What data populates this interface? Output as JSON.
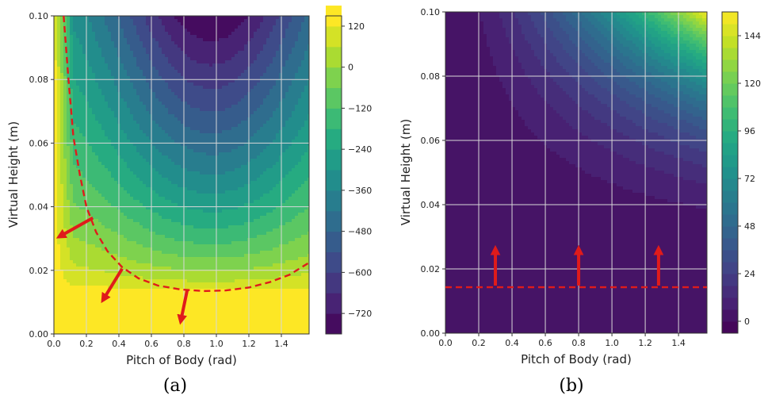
{
  "chart_data": [
    {
      "type": "heatmap",
      "variant": "filled-contour",
      "panel_label": "(a)",
      "xlabel": "Pitch of Body (rad)",
      "ylabel": "Virtual Height (m)",
      "xlim": [
        0.0,
        1.5708
      ],
      "ylim": [
        0.0,
        0.1
      ],
      "x_ticks": [
        "0.0",
        "0.2",
        "0.4",
        "0.6",
        "0.8",
        "1.0",
        "1.2",
        "1.4"
      ],
      "y_ticks": [
        "0.00",
        "0.02",
        "0.04",
        "0.06",
        "0.08",
        "0.10"
      ],
      "grid": true,
      "colormap": "viridis",
      "colorbar_ticks": [
        "120",
        "0",
        "−120",
        "−240",
        "−360",
        "−480",
        "−600",
        "−720"
      ],
      "colorbar_range": [
        -780,
        150
      ],
      "level_step": 60,
      "field_model": {
        "base": 150,
        "low": -780,
        "h0": 0.0135,
        "peak_pitch": 0.97,
        "pitch_spread": 0.7
      },
      "boundary_curve": {
        "style": "dashed",
        "color": "#e01b1b",
        "x": [
          0.06,
          0.09,
          0.12,
          0.16,
          0.2,
          0.26,
          0.33,
          0.42,
          0.52,
          0.64,
          0.78,
          0.92,
          1.06,
          1.2,
          1.33,
          1.45,
          1.57
        ],
        "y": [
          0.1,
          0.08,
          0.062,
          0.05,
          0.04,
          0.032,
          0.026,
          0.021,
          0.0175,
          0.0152,
          0.014,
          0.0135,
          0.0137,
          0.0146,
          0.0163,
          0.0186,
          0.0224
        ]
      },
      "arrows": [
        {
          "from": [
            0.24,
            0.0365
          ],
          "to": [
            0.03,
            0.0305
          ],
          "color": "#e01b1b"
        },
        {
          "from": [
            0.42,
            0.0205
          ],
          "to": [
            0.3,
            0.0105
          ],
          "color": "#e01b1b"
        },
        {
          "from": [
            0.82,
            0.0137
          ],
          "to": [
            0.78,
            0.0038
          ],
          "color": "#e01b1b"
        }
      ]
    },
    {
      "type": "heatmap",
      "variant": "filled-contour",
      "panel_label": "(b)",
      "xlabel": "Pitch of Body (rad)",
      "ylabel": "Virtual Height (m)",
      "xlim": [
        0.0,
        1.5708
      ],
      "ylim": [
        0.0,
        0.1
      ],
      "x_ticks": [
        "0.0",
        "0.2",
        "0.4",
        "0.6",
        "0.8",
        "1.0",
        "1.2",
        "1.4"
      ],
      "y_ticks": [
        "0.00",
        "0.02",
        "0.04",
        "0.06",
        "0.08",
        "0.10"
      ],
      "grid": true,
      "colormap": "viridis",
      "colorbar_ticks": [
        "144",
        "120",
        "96",
        "72",
        "48",
        "24",
        "0"
      ],
      "colorbar_range": [
        -6,
        156
      ],
      "level_step": 6,
      "field_model": {
        "max": 154,
        "pitch_exponent": 1.6,
        "height_exponent": 2.6,
        "h0": 0.014
      },
      "boundary_line": {
        "style": "dashed",
        "color": "#e01b1b",
        "y": 0.0143
      },
      "arrows": [
        {
          "from": [
            0.3,
            0.0148
          ],
          "to": [
            0.3,
            0.0265
          ],
          "color": "#e01b1b"
        },
        {
          "from": [
            0.8,
            0.0148
          ],
          "to": [
            0.8,
            0.0265
          ],
          "color": "#e01b1b"
        },
        {
          "from": [
            1.28,
            0.0148
          ],
          "to": [
            1.28,
            0.0265
          ],
          "color": "#e01b1b"
        }
      ]
    }
  ]
}
